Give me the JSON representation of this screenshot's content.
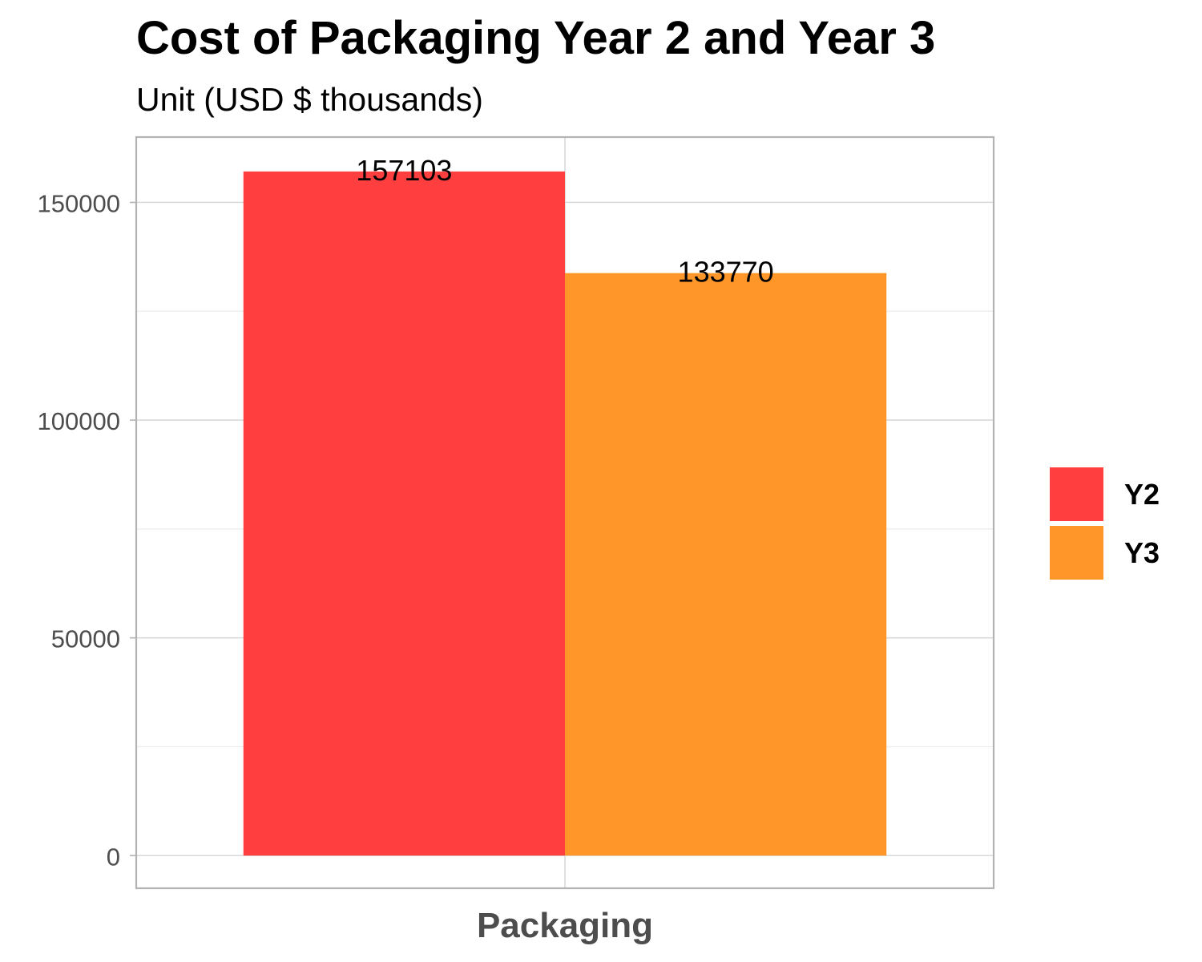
{
  "chart_data": {
    "type": "bar",
    "title": "Cost of Packaging Year 2 and Year 3",
    "subtitle": "Unit (USD $ thousands)",
    "xlabel": "",
    "ylabel": "",
    "categories": [
      "Packaging"
    ],
    "series": [
      {
        "name": "Y2",
        "values": [
          157103
        ],
        "color": "#FF3F3F"
      },
      {
        "name": "Y3",
        "values": [
          133770
        ],
        "color": "#FF962A"
      }
    ],
    "ylim": [
      -7500,
      165000
    ],
    "yticks": [
      0,
      50000,
      100000,
      150000
    ],
    "grid": true,
    "legend_position": "right",
    "data_labels": true
  }
}
